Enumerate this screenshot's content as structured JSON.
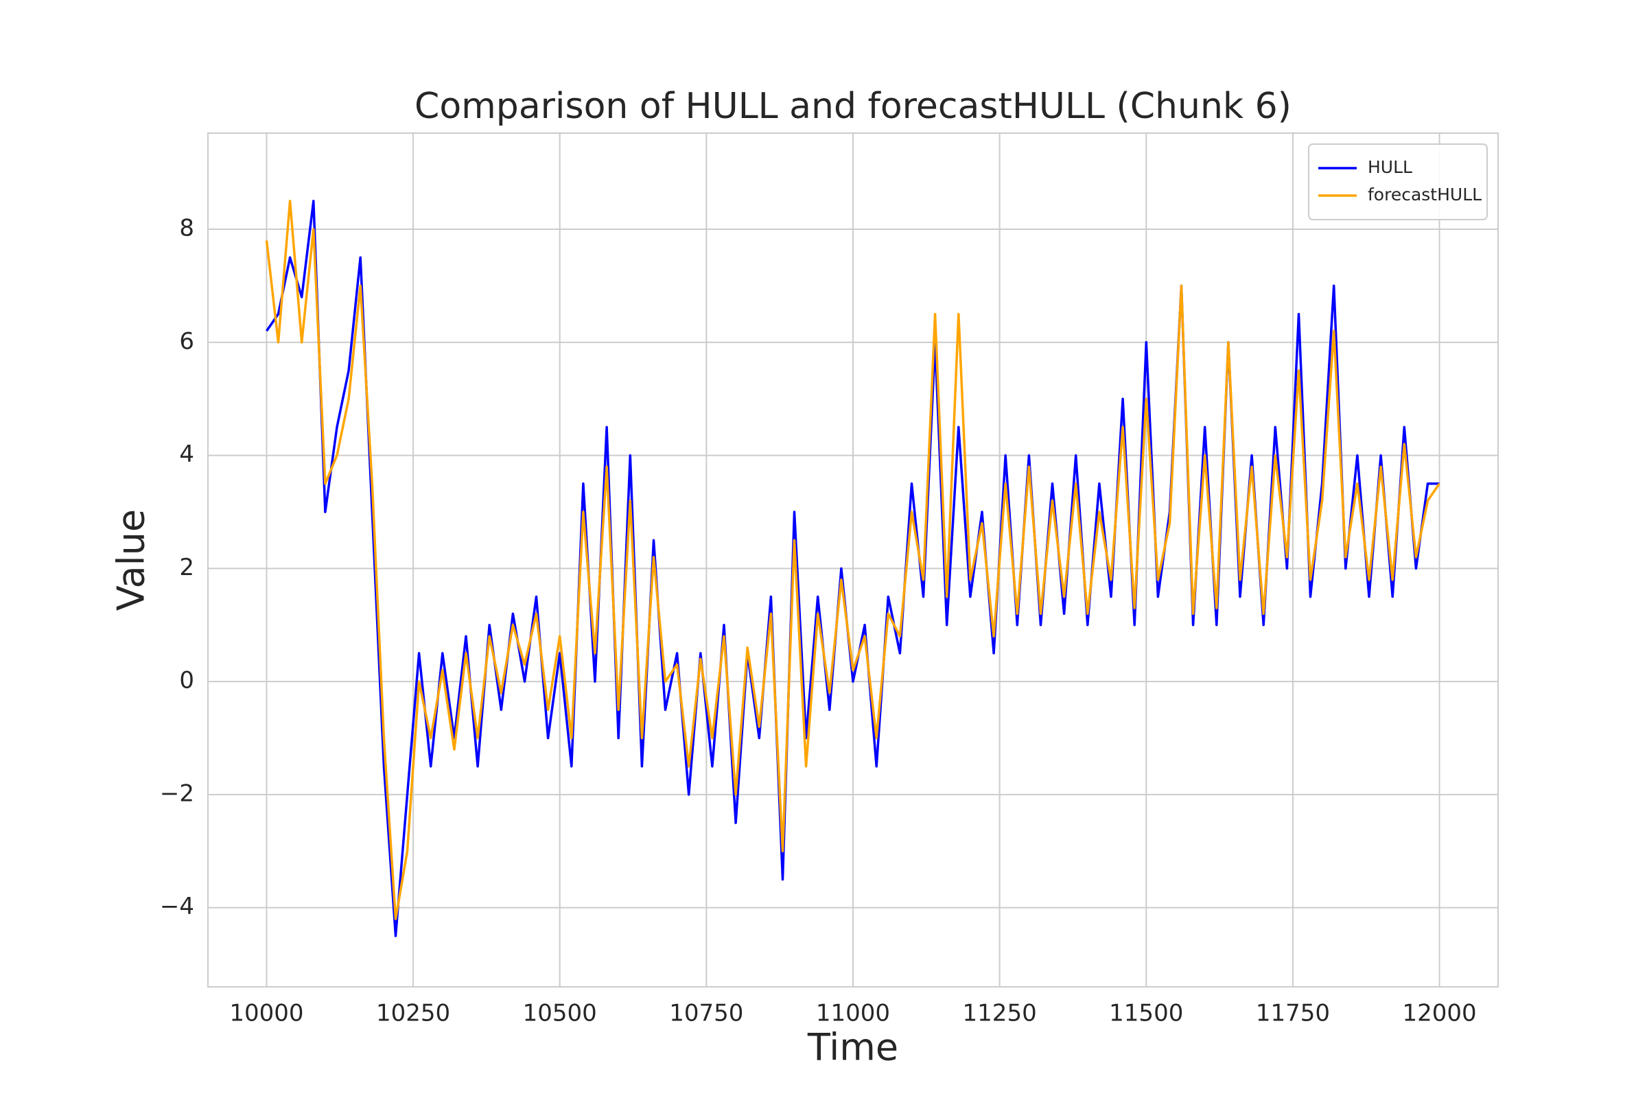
{
  "chart_data": {
    "type": "line",
    "title": "Comparison of HULL and forecastHULL (Chunk 6)",
    "xlabel": "Time",
    "ylabel": "Value",
    "x": [
      10000,
      10020,
      10040,
      10060,
      10080,
      10100,
      10120,
      10140,
      10160,
      10180,
      10200,
      10220,
      10240,
      10260,
      10280,
      10300,
      10320,
      10340,
      10360,
      10380,
      10400,
      10420,
      10440,
      10460,
      10480,
      10500,
      10520,
      10540,
      10560,
      10580,
      10600,
      10620,
      10640,
      10660,
      10680,
      10700,
      10720,
      10740,
      10760,
      10780,
      10800,
      10820,
      10840,
      10860,
      10880,
      10900,
      10920,
      10940,
      10960,
      10980,
      11000,
      11020,
      11040,
      11060,
      11080,
      11100,
      11120,
      11140,
      11160,
      11180,
      11200,
      11220,
      11240,
      11260,
      11280,
      11300,
      11320,
      11340,
      11360,
      11380,
      11400,
      11420,
      11440,
      11460,
      11480,
      11500,
      11520,
      11540,
      11560,
      11580,
      11600,
      11620,
      11640,
      11660,
      11680,
      11700,
      11720,
      11740,
      11760,
      11780,
      11800,
      11820,
      11840,
      11860,
      11880,
      11900,
      11920,
      11940,
      11960,
      11980,
      12000
    ],
    "series": [
      {
        "name": "HULL",
        "color": "#0000ff",
        "values": [
          6.2,
          6.5,
          7.5,
          6.8,
          8.5,
          3.0,
          4.5,
          5.5,
          7.5,
          3.0,
          -1.5,
          -4.5,
          -2.0,
          0.5,
          -1.5,
          0.5,
          -1.0,
          0.8,
          -1.5,
          1.0,
          -0.5,
          1.2,
          0.0,
          1.5,
          -1.0,
          0.5,
          -1.5,
          3.5,
          0.0,
          4.5,
          -1.0,
          4.0,
          -1.5,
          2.5,
          -0.5,
          0.5,
          -2.0,
          0.5,
          -1.5,
          1.0,
          -2.5,
          0.5,
          -1.0,
          1.5,
          -3.5,
          3.0,
          -1.0,
          1.5,
          -0.5,
          2.0,
          0.0,
          1.0,
          -1.5,
          1.5,
          0.5,
          3.5,
          1.5,
          6.0,
          1.0,
          4.5,
          1.5,
          3.0,
          0.5,
          4.0,
          1.0,
          4.0,
          1.0,
          3.5,
          1.2,
          4.0,
          1.0,
          3.5,
          1.5,
          5.0,
          1.0,
          6.0,
          1.5,
          3.0,
          7.0,
          1.0,
          4.5,
          1.0,
          6.0,
          1.5,
          4.0,
          1.0,
          4.5,
          2.0,
          6.5,
          1.5,
          3.5,
          7.0,
          2.0,
          4.0,
          1.5,
          4.0,
          1.5,
          4.5,
          2.0,
          3.5,
          3.5
        ]
      },
      {
        "name": "forecastHULL",
        "color": "#ffa500",
        "values": [
          7.8,
          6.0,
          8.5,
          6.0,
          8.0,
          3.5,
          4.0,
          5.0,
          7.0,
          3.5,
          -1.0,
          -4.2,
          -3.0,
          0.0,
          -1.0,
          0.2,
          -1.2,
          0.5,
          -1.0,
          0.8,
          -0.2,
          1.0,
          0.3,
          1.2,
          -0.5,
          0.8,
          -1.0,
          3.0,
          0.5,
          3.8,
          -0.5,
          3.2,
          -1.0,
          2.2,
          0.0,
          0.3,
          -1.5,
          0.4,
          -1.0,
          0.8,
          -2.0,
          0.6,
          -0.8,
          1.2,
          -3.0,
          2.5,
          -1.5,
          1.2,
          -0.2,
          1.8,
          0.2,
          0.8,
          -1.0,
          1.2,
          0.8,
          3.0,
          1.8,
          6.5,
          1.5,
          6.5,
          1.8,
          2.8,
          0.8,
          3.5,
          1.2,
          3.8,
          1.2,
          3.2,
          1.5,
          3.5,
          1.2,
          3.0,
          1.8,
          4.5,
          1.3,
          5.0,
          1.8,
          2.8,
          7.0,
          1.2,
          4.0,
          1.3,
          6.0,
          1.8,
          3.8,
          1.2,
          4.0,
          2.2,
          5.5,
          1.8,
          3.2,
          6.2,
          2.2,
          3.5,
          1.8,
          3.8,
          1.8,
          4.2,
          2.2,
          3.2,
          3.5
        ]
      }
    ],
    "xlim": [
      9900,
      12100
    ],
    "xticks": [
      10000,
      10250,
      10500,
      10750,
      11000,
      11250,
      11500,
      11750,
      12000
    ],
    "ylim": [
      -5.4,
      9.7
    ],
    "yticks": [
      {
        "value": -4,
        "label": "−4"
      },
      {
        "value": -2,
        "label": "−2"
      },
      0,
      2,
      4,
      6,
      8
    ],
    "grid": true,
    "legend": "upper right"
  }
}
